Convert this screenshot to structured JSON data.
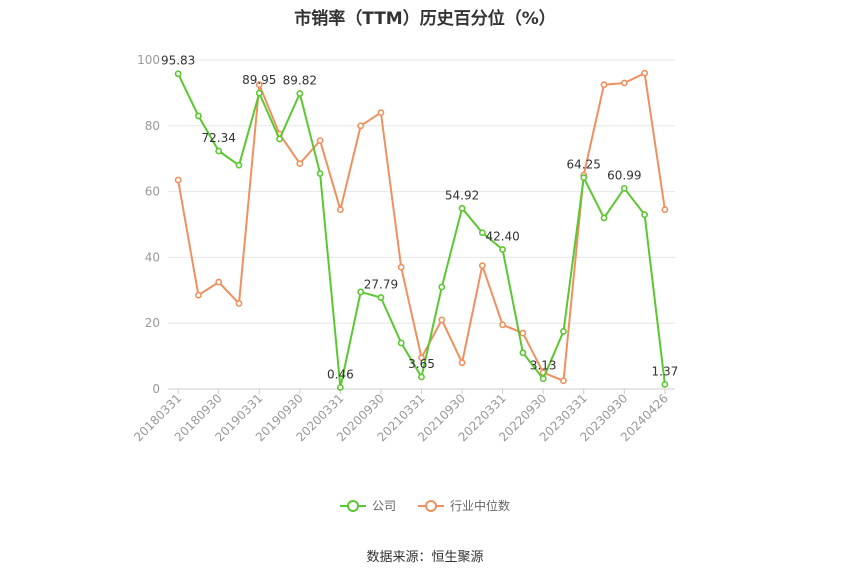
{
  "chart_data": {
    "type": "line",
    "title": "市销率（TTM）历史百分位（%）",
    "source": "数据来源：恒生聚源",
    "ylim": [
      0,
      100
    ],
    "yticks": [
      0,
      20,
      40,
      60,
      80,
      100
    ],
    "x": [
      "20180331",
      "20180630",
      "20180930",
      "20181231",
      "20190331",
      "20190630",
      "20190930",
      "20191231",
      "20200331",
      "20200630",
      "20200930",
      "20201231",
      "20210331",
      "20210630",
      "20210930",
      "20211231",
      "20220331",
      "20220630",
      "20220930",
      "20221231",
      "20230331",
      "20230630",
      "20230930",
      "20231231",
      "20240426"
    ],
    "xtick_labels": [
      "20180331",
      "20180930",
      "20190331",
      "20190930",
      "20200331",
      "20200930",
      "20210331",
      "20210930",
      "20220331",
      "20220930",
      "20230331",
      "20230930",
      "20240426"
    ],
    "legend_position": "bottom",
    "grid": true,
    "series": [
      {
        "name": "公司",
        "color": "#5ac831",
        "values": [
          95.83,
          83.0,
          72.34,
          68.0,
          89.95,
          76.0,
          89.82,
          65.5,
          0.46,
          29.5,
          27.79,
          14.0,
          3.65,
          31.0,
          54.92,
          47.5,
          42.4,
          11.0,
          3.13,
          17.5,
          64.25,
          52.0,
          60.99,
          53.0,
          1.37
        ],
        "labels": {
          "0": "95.83",
          "2": "72.34",
          "4": "89.95",
          "6": "89.82",
          "8": "0.46",
          "10": "27.79",
          "12": "3.65",
          "14": "54.92",
          "16": "42.40",
          "18": "3.13",
          "20": "64.25",
          "22": "60.99",
          "24": "1.37"
        }
      },
      {
        "name": "行业中位数",
        "color": "#f0905f",
        "values": [
          63.5,
          28.5,
          32.5,
          26.0,
          92.5,
          77.5,
          68.5,
          75.5,
          54.5,
          80.0,
          84.0,
          37.0,
          9.5,
          21.0,
          8.0,
          37.5,
          19.5,
          17.0,
          5.0,
          2.5,
          65.0,
          92.5,
          93.0,
          96.0,
          54.5
        ]
      }
    ]
  }
}
